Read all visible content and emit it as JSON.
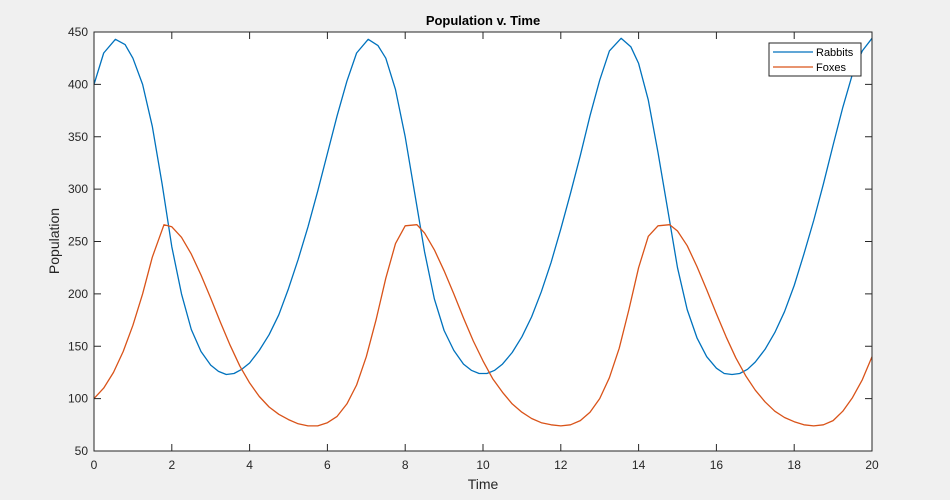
{
  "chart_data": {
    "type": "line",
    "title": "Population v. Time",
    "xlabel": "Time",
    "ylabel": "Population",
    "xlim": [
      0,
      20
    ],
    "ylim": [
      50,
      450
    ],
    "xticks": [
      0,
      2,
      4,
      6,
      8,
      10,
      12,
      14,
      16,
      18,
      20
    ],
    "yticks": [
      50,
      100,
      150,
      200,
      250,
      300,
      350,
      400,
      450
    ],
    "grid": false,
    "legend_position": "northeast",
    "period_approx": 6.5,
    "series": [
      {
        "name": "Rabbits",
        "color": "#0072bd",
        "x": [
          0,
          0.25,
          0.55,
          0.8,
          1.0,
          1.25,
          1.5,
          1.75,
          2.0,
          2.25,
          2.5,
          2.75,
          3.0,
          3.2,
          3.4,
          3.6,
          3.8,
          4.0,
          4.25,
          4.5,
          4.75,
          5.0,
          5.25,
          5.5,
          5.75,
          6.0,
          6.25,
          6.5,
          6.75,
          7.05,
          7.3,
          7.5,
          7.75,
          8.0,
          8.25,
          8.5,
          8.75,
          9.0,
          9.25,
          9.5,
          9.7,
          9.9,
          10.1,
          10.3,
          10.5,
          10.75,
          11.0,
          11.25,
          11.5,
          11.75,
          12.0,
          12.25,
          12.5,
          12.75,
          13.0,
          13.25,
          13.55,
          13.8,
          14.0,
          14.25,
          14.5,
          14.75,
          15.0,
          15.25,
          15.5,
          15.75,
          16.0,
          16.2,
          16.4,
          16.6,
          16.8,
          17.0,
          17.25,
          17.5,
          17.75,
          18.0,
          18.25,
          18.5,
          18.75,
          19.0,
          19.25,
          19.5,
          19.75,
          20.0
        ],
        "values": [
          400,
          430,
          443,
          438,
          425,
          400,
          360,
          305,
          245,
          200,
          166,
          145,
          132,
          126,
          123,
          124,
          128,
          134,
          146,
          161,
          180,
          205,
          233,
          264,
          298,
          334,
          370,
          403,
          430,
          443,
          437,
          425,
          395,
          350,
          295,
          240,
          195,
          165,
          146,
          133,
          127,
          124,
          124,
          127,
          133,
          144,
          159,
          178,
          202,
          230,
          262,
          296,
          332,
          370,
          404,
          432,
          444,
          436,
          420,
          385,
          335,
          280,
          225,
          185,
          158,
          140,
          129,
          124,
          123,
          124,
          128,
          135,
          147,
          163,
          183,
          208,
          238,
          270,
          305,
          342,
          378,
          410,
          432,
          444
        ]
      },
      {
        "name": "Foxes",
        "color": "#d95319",
        "x": [
          0,
          0.25,
          0.5,
          0.75,
          1.0,
          1.25,
          1.5,
          1.8,
          2.0,
          2.25,
          2.5,
          2.75,
          3.0,
          3.25,
          3.5,
          3.75,
          4.0,
          4.25,
          4.5,
          4.75,
          5.0,
          5.25,
          5.5,
          5.75,
          6.0,
          6.25,
          6.5,
          6.75,
          7.0,
          7.25,
          7.5,
          7.75,
          8.0,
          8.3,
          8.5,
          8.75,
          9.0,
          9.25,
          9.5,
          9.75,
          10.0,
          10.25,
          10.5,
          10.75,
          11.0,
          11.25,
          11.5,
          11.75,
          12.0,
          12.25,
          12.5,
          12.75,
          13.0,
          13.25,
          13.5,
          13.75,
          14.0,
          14.25,
          14.5,
          14.8,
          15.0,
          15.25,
          15.5,
          15.75,
          16.0,
          16.25,
          16.5,
          16.75,
          17.0,
          17.25,
          17.5,
          17.75,
          18.0,
          18.25,
          18.5,
          18.75,
          19.0,
          19.25,
          19.5,
          19.75,
          20.0
        ],
        "values": [
          100,
          110,
          125,
          145,
          170,
          200,
          235,
          266,
          264,
          254,
          238,
          218,
          196,
          173,
          151,
          131,
          115,
          102,
          92,
          85,
          80,
          76,
          74,
          74,
          77,
          83,
          95,
          113,
          140,
          175,
          215,
          248,
          265,
          266,
          258,
          242,
          222,
          200,
          177,
          155,
          136,
          119,
          106,
          95,
          87,
          81,
          77,
          75,
          74,
          75,
          79,
          87,
          100,
          120,
          148,
          185,
          225,
          255,
          265,
          266,
          260,
          246,
          226,
          204,
          181,
          159,
          139,
          122,
          108,
          97,
          88,
          82,
          78,
          75,
          74,
          75,
          79,
          88,
          101,
          118,
          140
        ]
      }
    ]
  },
  "figure": {
    "title": "Population v. Time",
    "xlabel": "Time",
    "ylabel": "Population",
    "legend": [
      {
        "label": "Rabbits",
        "color": "#0072bd"
      },
      {
        "label": "Foxes",
        "color": "#d95319"
      }
    ]
  }
}
